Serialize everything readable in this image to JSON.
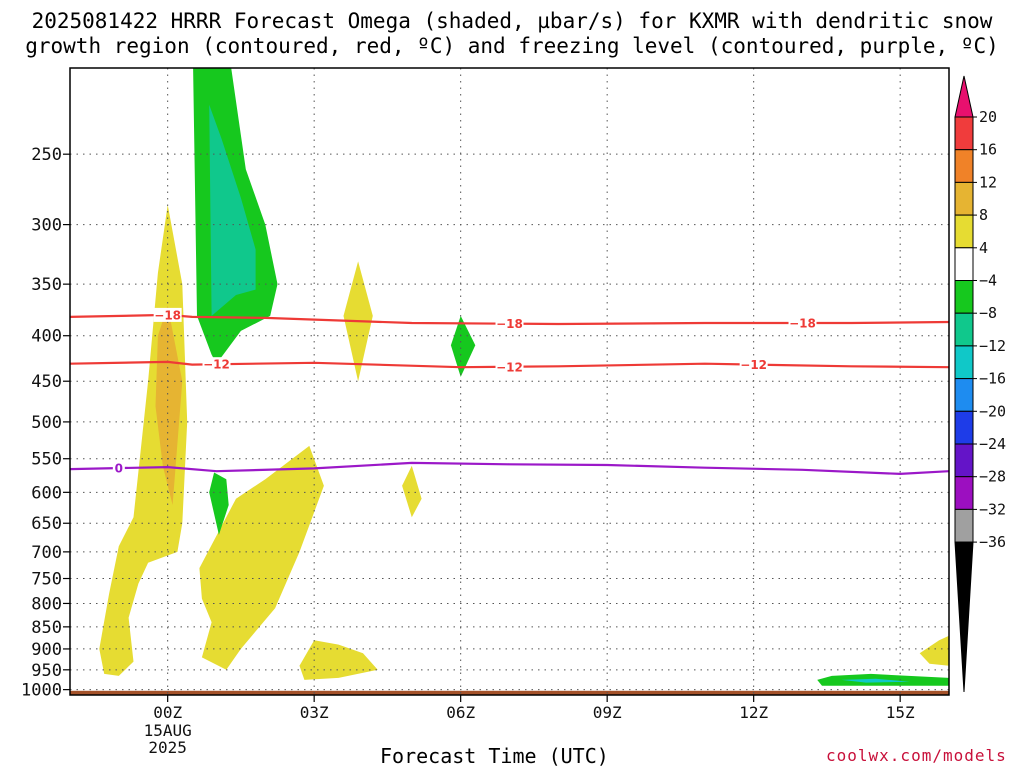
{
  "title": {
    "line1": "2025081422 HRRR Forecast Omega (shaded, µbar/s) for KXMR with dendritic snow",
    "line2": "growth region (contoured, red, ºC) and freezing level (contoured, purple, ºC)"
  },
  "credit": "coolwx.com/models",
  "chart_data": {
    "type": "time-height cross section",
    "xlabel": "Forecast Time (UTC)",
    "x_ticks": [
      {
        "hour": 2,
        "label": "00Z",
        "sub": [
          "15AUG",
          "2025"
        ]
      },
      {
        "hour": 5,
        "label": "03Z"
      },
      {
        "hour": 8,
        "label": "06Z"
      },
      {
        "hour": 11,
        "label": "09Z"
      },
      {
        "hour": 14,
        "label": "12Z"
      },
      {
        "hour": 17,
        "label": "15Z"
      }
    ],
    "xlim": [
      0.0,
      18.0
    ],
    "y_ticks": [
      250,
      300,
      350,
      400,
      450,
      500,
      550,
      600,
      650,
      700,
      750,
      800,
      850,
      900,
      950,
      1000
    ],
    "ylim_hPa": [
      200,
      1014
    ],
    "grid": true,
    "ground_level_hPa": 1003,
    "colorbar": {
      "ticks": [
        "20",
        "16",
        "12",
        "8",
        "4",
        "−4",
        "−8",
        "−12",
        "−16",
        "−20",
        "−24",
        "−28",
        "−32",
        "−36"
      ],
      "colors": [
        "#e8106e",
        "#f03c3c",
        "#f08228",
        "#e6b432",
        "#e6dc32",
        "#ffffff",
        "#16c81e",
        "#10c88c",
        "#10c8c8",
        "#1e8cf0",
        "#1e3ce8",
        "#6414c8",
        "#9c0fc0",
        "#a0a0a0",
        "#000000"
      ]
    },
    "contours": [
      {
        "name": "-18",
        "color": "#ee3a36",
        "points": [
          [
            0.0,
            381
          ],
          [
            2.0,
            379
          ],
          [
            2.5,
            381
          ],
          [
            4.0,
            382
          ],
          [
            7.0,
            387
          ],
          [
            10.0,
            388
          ],
          [
            13.0,
            387
          ],
          [
            16.0,
            387
          ],
          [
            18.0,
            386
          ]
        ],
        "labels": [
          [
            2.0,
            "−18"
          ],
          [
            9.0,
            "−18"
          ],
          [
            15.0,
            "−18"
          ]
        ]
      },
      {
        "name": "-12",
        "color": "#ee3a36",
        "points": [
          [
            0.0,
            430
          ],
          [
            2.0,
            428
          ],
          [
            2.5,
            431
          ],
          [
            5.0,
            429
          ],
          [
            8.0,
            434
          ],
          [
            10.0,
            433
          ],
          [
            13.0,
            430
          ],
          [
            16.0,
            433
          ],
          [
            18.0,
            434
          ]
        ],
        "labels": [
          [
            3.0,
            "−12"
          ],
          [
            9.0,
            "−12"
          ],
          [
            14.0,
            "−12"
          ]
        ]
      },
      {
        "name": "0",
        "color": "#9b18c8",
        "points": [
          [
            0.0,
            565
          ],
          [
            2.0,
            562
          ],
          [
            3.0,
            568
          ],
          [
            5.0,
            564
          ],
          [
            7.0,
            556
          ],
          [
            9.0,
            558
          ],
          [
            11.0,
            559
          ],
          [
            13.0,
            563
          ],
          [
            15.0,
            566
          ],
          [
            17.0,
            572
          ],
          [
            18.0,
            568
          ]
        ],
        "labels": [
          [
            1.0,
            "0"
          ]
        ]
      }
    ],
    "omega_areas": [
      {
        "name": "yellow-lift-main",
        "color": "#e6dc32",
        "points": [
          [
            0.6,
            900
          ],
          [
            0.8,
            780
          ],
          [
            1.0,
            690
          ],
          [
            1.3,
            640
          ],
          [
            1.6,
            450
          ],
          [
            1.8,
            340
          ],
          [
            2.0,
            285
          ],
          [
            2.3,
            350
          ],
          [
            2.4,
            500
          ],
          [
            2.3,
            650
          ],
          [
            2.2,
            700
          ],
          [
            1.6,
            720
          ],
          [
            1.4,
            760
          ],
          [
            1.2,
            830
          ],
          [
            1.3,
            930
          ],
          [
            1.0,
            965
          ],
          [
            0.7,
            960
          ]
        ]
      },
      {
        "name": "orange-core",
        "color": "#e6b432",
        "points": [
          [
            1.75,
            480
          ],
          [
            1.8,
            400
          ],
          [
            2.0,
            370
          ],
          [
            2.3,
            450
          ],
          [
            2.1,
            620
          ],
          [
            1.9,
            560
          ]
        ]
      },
      {
        "name": "yellow-lift-low",
        "color": "#e6dc32",
        "points": [
          [
            2.65,
            730
          ],
          [
            3.4,
            610
          ],
          [
            4.0,
            580
          ],
          [
            4.9,
            532
          ],
          [
            5.2,
            590
          ],
          [
            4.7,
            700
          ],
          [
            4.2,
            810
          ],
          [
            3.5,
            900
          ],
          [
            3.2,
            950
          ],
          [
            2.7,
            920
          ],
          [
            2.9,
            840
          ],
          [
            2.7,
            790
          ]
        ]
      },
      {
        "name": "yellow-lift-upper",
        "color": "#e6dc32",
        "points": [
          [
            5.6,
            380
          ],
          [
            5.9,
            330
          ],
          [
            6.2,
            380
          ],
          [
            5.9,
            450
          ]
        ]
      },
      {
        "name": "yellow-lift-mid",
        "color": "#e6dc32",
        "points": [
          [
            6.8,
            590
          ],
          [
            7.0,
            560
          ],
          [
            7.2,
            610
          ],
          [
            7.0,
            640
          ]
        ]
      },
      {
        "name": "yellow-lift-surface",
        "color": "#e6dc32",
        "points": [
          [
            4.7,
            940
          ],
          [
            5.0,
            880
          ],
          [
            5.5,
            890
          ],
          [
            6.0,
            910
          ],
          [
            6.3,
            950
          ],
          [
            5.5,
            970
          ],
          [
            4.8,
            975
          ]
        ]
      },
      {
        "name": "yellow-lift-right",
        "color": "#e6dc32",
        "points": [
          [
            17.4,
            910
          ],
          [
            17.8,
            880
          ],
          [
            18.0,
            870
          ],
          [
            18.0,
            940
          ],
          [
            17.6,
            935
          ]
        ]
      },
      {
        "name": "green-sink-upper",
        "color": "#16c81e",
        "points": [
          [
            2.52,
            200
          ],
          [
            3.3,
            200
          ],
          [
            3.6,
            260
          ],
          [
            4.0,
            300
          ],
          [
            4.25,
            350
          ],
          [
            4.1,
            380
          ],
          [
            3.5,
            395
          ],
          [
            3.0,
            430
          ],
          [
            2.9,
            420
          ],
          [
            2.6,
            380
          ]
        ]
      },
      {
        "name": "teal-sink-upper",
        "color": "#10c88c",
        "points": [
          [
            2.85,
            220
          ],
          [
            3.1,
            240
          ],
          [
            3.5,
            280
          ],
          [
            3.8,
            320
          ],
          [
            3.8,
            355
          ],
          [
            3.4,
            360
          ],
          [
            2.9,
            380
          ]
        ]
      },
      {
        "name": "green-sink-mid",
        "color": "#16c81e",
        "points": [
          [
            2.85,
            600
          ],
          [
            2.95,
            570
          ],
          [
            3.2,
            580
          ],
          [
            3.25,
            620
          ],
          [
            3.05,
            670
          ]
        ]
      },
      {
        "name": "green-sink-level6",
        "color": "#16c81e",
        "points": [
          [
            7.8,
            410
          ],
          [
            8.0,
            380
          ],
          [
            8.3,
            410
          ],
          [
            8.0,
            445
          ]
        ]
      },
      {
        "name": "green-sink-surface",
        "color": "#16c81e",
        "points": [
          [
            15.3,
            975
          ],
          [
            15.6,
            965
          ],
          [
            16.4,
            960
          ],
          [
            18.0,
            970
          ],
          [
            18.0,
            990
          ],
          [
            16.5,
            990
          ],
          [
            15.4,
            990
          ]
        ]
      },
      {
        "name": "teal-sink-surface",
        "color": "#10c8c8",
        "points": [
          [
            15.8,
            975
          ],
          [
            16.5,
            972
          ],
          [
            17.2,
            980
          ],
          [
            16.3,
            982
          ]
        ]
      }
    ]
  }
}
